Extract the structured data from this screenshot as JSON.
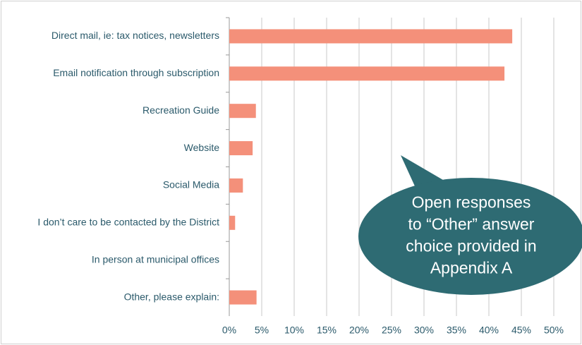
{
  "chart_data": {
    "type": "bar",
    "orientation": "horizontal",
    "categories": [
      "Direct mail, ie: tax notices, newsletters",
      "Email notification through subscription",
      "Recreation Guide",
      "Website",
      "Social Media",
      "I don’t care to be contacted by the District",
      "In person at municipal offices",
      "Other, please explain:"
    ],
    "values": [
      43.6,
      42.4,
      4.1,
      3.6,
      2.1,
      0.9,
      0,
      4.2
    ],
    "color": "#f4907a",
    "xlim": [
      0,
      50
    ],
    "xticks": [
      {
        "value": 0,
        "label": "0%"
      },
      {
        "value": 5,
        "label": "5%"
      },
      {
        "value": 10,
        "label": "10%"
      },
      {
        "value": 15,
        "label": "15%"
      },
      {
        "value": 20,
        "label": "20%"
      },
      {
        "value": 25,
        "label": "25%"
      },
      {
        "value": 30,
        "label": "30%"
      },
      {
        "value": 35,
        "label": "35%"
      },
      {
        "value": 40,
        "label": "40%"
      },
      {
        "value": 45,
        "label": "45%"
      },
      {
        "value": 50,
        "label": "50%"
      }
    ],
    "grid": true,
    "annotation": [
      "Open responses",
      "to “Other” answer",
      "choice provided in",
      "Appendix A"
    ]
  }
}
